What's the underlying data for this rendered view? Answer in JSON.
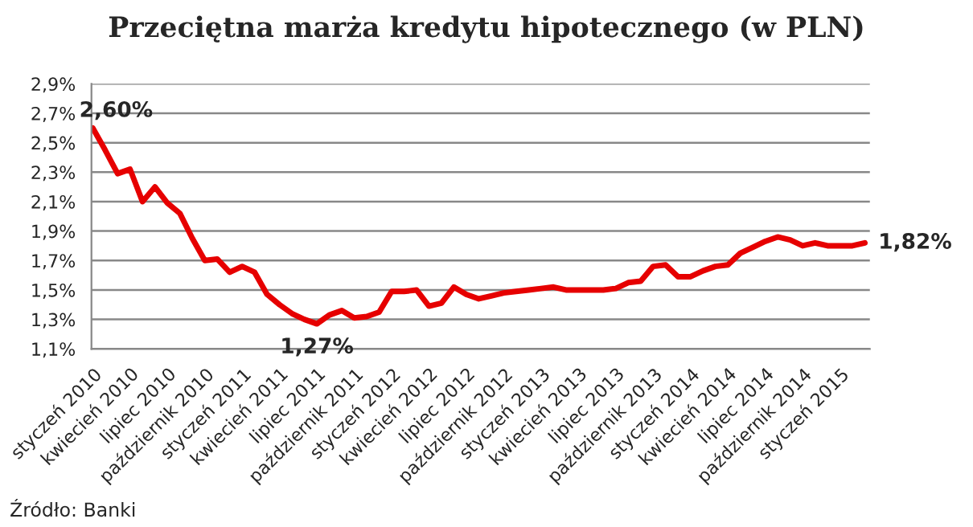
{
  "chart_data": {
    "type": "line",
    "title": "Przeciętna marża kredytu hipotecznego (w PLN)",
    "categories": [
      "styczeń 2010",
      null,
      null,
      "kwiecień 2010",
      null,
      null,
      "lipiec 2010",
      null,
      null,
      "październik 2010",
      null,
      null,
      "styczeń 2011",
      null,
      null,
      "kwiecień 2011",
      null,
      null,
      "lipiec 2011",
      null,
      null,
      "październik 2011",
      null,
      null,
      "styczeń 2012",
      null,
      null,
      "kwiecień 2012",
      null,
      null,
      "lipiec 2012",
      null,
      null,
      "październik 2012",
      null,
      null,
      "styczeń 2013",
      null,
      null,
      "kwiecień 2013",
      null,
      null,
      "lipiec 2013",
      null,
      null,
      "październik 2013",
      null,
      null,
      "styczeń 2014",
      null,
      null,
      "kwiecień 2014",
      null,
      null,
      "lipiec 2014",
      null,
      null,
      "październik 2014",
      null,
      null,
      "styczeń 2015",
      null,
      null
    ],
    "series": [
      {
        "color": "#e60000",
        "values": [
          2.6,
          2.45,
          2.29,
          2.32,
          2.1,
          2.2,
          2.09,
          2.02,
          1.85,
          1.7,
          1.71,
          1.62,
          1.66,
          1.62,
          1.47,
          1.4,
          1.34,
          1.3,
          1.27,
          1.33,
          1.36,
          1.31,
          1.32,
          1.35,
          1.49,
          1.49,
          1.5,
          1.39,
          1.41,
          1.52,
          1.47,
          1.44,
          1.46,
          1.48,
          1.49,
          1.5,
          1.51,
          1.52,
          1.5,
          1.5,
          1.5,
          1.5,
          1.51,
          1.55,
          1.56,
          1.66,
          1.67,
          1.59,
          1.59,
          1.63,
          1.66,
          1.67,
          1.75,
          1.79,
          1.83,
          1.86,
          1.84,
          1.8,
          1.82,
          1.8,
          1.8,
          1.8,
          1.82
        ],
        "value_labels": [
          "2,60%",
          null,
          null,
          null,
          null,
          null,
          null,
          null,
          null,
          null,
          null,
          null,
          null,
          null,
          null,
          null,
          null,
          null,
          "1,27%",
          null,
          null,
          null,
          null,
          null,
          null,
          null,
          null,
          null,
          null,
          null,
          null,
          null,
          null,
          null,
          null,
          null,
          null,
          null,
          null,
          null,
          null,
          null,
          null,
          null,
          null,
          null,
          null,
          null,
          null,
          null,
          null,
          null,
          null,
          null,
          null,
          null,
          null,
          null,
          null,
          null,
          null,
          null,
          "1,82%"
        ]
      }
    ],
    "ylim": [
      1.1,
      2.9
    ],
    "yticks": [
      {
        "value": 1.1,
        "label": "1,1%"
      },
      {
        "value": 1.3,
        "label": "1,3%"
      },
      {
        "value": 1.5,
        "label": "1,5%"
      },
      {
        "value": 1.7,
        "label": "1,7%"
      },
      {
        "value": 1.9,
        "label": "1,9%"
      },
      {
        "value": 2.1,
        "label": "2,1%"
      },
      {
        "value": 2.3,
        "label": "2,3%"
      },
      {
        "value": 2.5,
        "label": "2,5%"
      },
      {
        "value": 2.7,
        "label": "2,7%"
      },
      {
        "value": 2.9,
        "label": "2,9%"
      }
    ],
    "grid": "y",
    "legend": false,
    "marker": "none",
    "line_style": "solid",
    "annotations": [
      "Źródło: Banki"
    ]
  }
}
